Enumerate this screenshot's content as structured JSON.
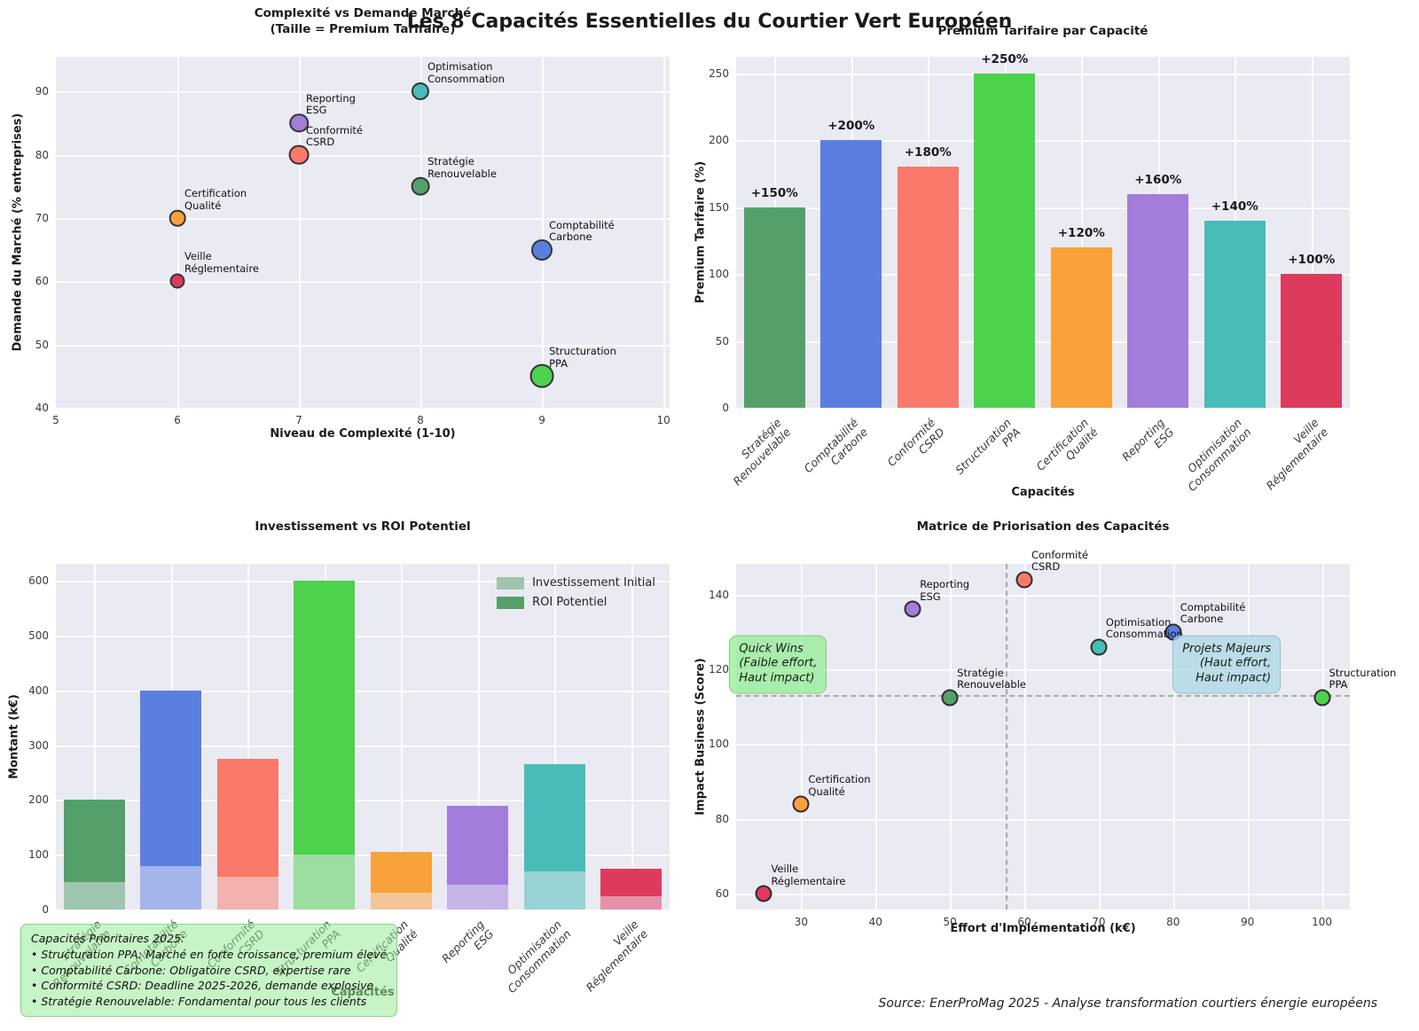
{
  "figure": {
    "suptitle": "Les 8 Capacités Essentielles du Courtier Vert Européen",
    "source": "Source: EnerProMag 2025 - Analyse transformation courtiers énergie européens",
    "background": "#ffffff",
    "plot_background": "#eaeaf2",
    "grid_color": "#ffffff"
  },
  "capacities": [
    {
      "name": "Stratégie Renouvelable",
      "color": "#55a06a",
      "complexite": 8,
      "demande_pct": 75,
      "premium_pct": 150,
      "invest_keur": 50,
      "roi_keur": 150,
      "effort_keur": 50,
      "impact_score": 112.5
    },
    {
      "name": "Comptabilité Carbone",
      "color": "#5b7fe0",
      "complexite": 9,
      "demande_pct": 65,
      "premium_pct": 200,
      "invest_keur": 80,
      "roi_keur": 320,
      "effort_keur": 80,
      "impact_score": 130
    },
    {
      "name": "Conformité CSRD",
      "color": "#f9796a",
      "complexite": 7,
      "demande_pct": 80,
      "premium_pct": 180,
      "invest_keur": 60,
      "roi_keur": 215,
      "effort_keur": 60,
      "impact_score": 144
    },
    {
      "name": "Structuration PPA",
      "color": "#4cd24c",
      "complexite": 9,
      "demande_pct": 45,
      "premium_pct": 250,
      "invest_keur": 100,
      "roi_keur": 500,
      "effort_keur": 100,
      "impact_score": 112.5
    },
    {
      "name": "Certification Qualité",
      "color": "#f9a23b",
      "complexite": 6,
      "demande_pct": 70,
      "premium_pct": 120,
      "invest_keur": 30,
      "roi_keur": 75,
      "effort_keur": 30,
      "impact_score": 84
    },
    {
      "name": "Reporting ESG",
      "color": "#a27ddb",
      "complexite": 7,
      "demande_pct": 85,
      "premium_pct": 160,
      "invest_keur": 45,
      "roi_keur": 145,
      "effort_keur": 45,
      "impact_score": 136
    },
    {
      "name": "Optimisation Consommation",
      "color": "#48bcb8",
      "complexite": 8,
      "demande_pct": 90,
      "premium_pct": 140,
      "invest_keur": 70,
      "roi_keur": 195,
      "effort_keur": 70,
      "impact_score": 126
    },
    {
      "name": "Veille Réglementaire",
      "color": "#dd3a5e",
      "complexite": 6,
      "demande_pct": 60,
      "premium_pct": 100,
      "invest_keur": 25,
      "roi_keur": 50,
      "effort_keur": 25,
      "impact_score": 60
    }
  ],
  "chart_data": [
    {
      "id": "complexite_vs_demande",
      "type": "scatter",
      "title": "Complexité vs Demande Marché\n(Taille = Premium Tarifaire)",
      "xlabel": "Niveau de Complexité (1-10)",
      "ylabel": "Demande du Marché (% entreprises)",
      "xlim": [
        5,
        10.05
      ],
      "ylim": [
        40,
        95.5
      ],
      "xticks": [
        5,
        6,
        7,
        8,
        9,
        10
      ],
      "yticks": [
        40,
        50,
        60,
        70,
        80,
        90
      ],
      "grid": true,
      "size_encoding": "taille du point = premium tarifaire (%)",
      "points": [
        {
          "label": "Stratégie Renouvelable",
          "x": 8,
          "y": 75,
          "size": 150,
          "color": "#55a06a"
        },
        {
          "label": "Comptabilité Carbone",
          "x": 9,
          "y": 65,
          "size": 200,
          "color": "#5b7fe0"
        },
        {
          "label": "Conformité CSRD",
          "x": 7,
          "y": 80,
          "size": 180,
          "color": "#f9796a"
        },
        {
          "label": "Structuration PPA",
          "x": 9,
          "y": 45,
          "size": 250,
          "color": "#4cd24c"
        },
        {
          "label": "Certification Qualité",
          "x": 6,
          "y": 70,
          "size": 120,
          "color": "#f9a23b"
        },
        {
          "label": "Reporting ESG",
          "x": 7,
          "y": 85,
          "size": 160,
          "color": "#a27ddb"
        },
        {
          "label": "Optimisation Consommation",
          "x": 8,
          "y": 90,
          "size": 140,
          "color": "#48bcb8"
        },
        {
          "label": "Veille Réglementaire",
          "x": 6,
          "y": 60,
          "size": 100,
          "color": "#dd3a5e"
        }
      ]
    },
    {
      "id": "premium_tarifaire",
      "type": "bar",
      "title": "Premium Tarifaire par Capacité",
      "xlabel": "Capacités",
      "ylabel": "Premium Tarifaire (%)",
      "ylim": [
        0,
        262.5
      ],
      "yticks": [
        0,
        50,
        100,
        150,
        200,
        250
      ],
      "grid": true,
      "categories": [
        "Stratégie Renouvelable",
        "Comptabilité Carbone",
        "Conformité CSRD",
        "Structuration PPA",
        "Certification Qualité",
        "Reporting ESG",
        "Optimisation Consommation",
        "Veille Réglementaire"
      ],
      "values": [
        150,
        200,
        180,
        250,
        120,
        160,
        140,
        100
      ],
      "bar_labels": [
        "+150%",
        "+200%",
        "+180%",
        "+250%",
        "+120%",
        "+160%",
        "+140%",
        "+100%"
      ],
      "colors": [
        "#55a06a",
        "#5b7fe0",
        "#f9796a",
        "#4cd24c",
        "#f9a23b",
        "#a27ddb",
        "#48bcb8",
        "#dd3a5e"
      ]
    },
    {
      "id": "investissement_roi",
      "type": "bar",
      "stacked": true,
      "title": "Investissement vs ROI Potentiel",
      "xlabel": "Capacités",
      "ylabel": "Montant (k€)",
      "ylim": [
        0,
        631
      ],
      "yticks": [
        0,
        100,
        200,
        300,
        400,
        500,
        600
      ],
      "grid": true,
      "categories": [
        "Stratégie Renouvelable",
        "Comptabilité Carbone",
        "Conformité CSRD",
        "Structuration PPA",
        "Certification Qualité",
        "Reporting ESG",
        "Optimisation Consommation",
        "Veille Réglementaire"
      ],
      "series": [
        {
          "name": "Investissement Initial",
          "values": [
            50,
            80,
            60,
            100,
            30,
            45,
            70,
            25
          ]
        },
        {
          "name": "ROI Potentiel",
          "values": [
            150,
            320,
            215,
            500,
            75,
            145,
            195,
            50
          ]
        }
      ],
      "colors": [
        "#55a06a",
        "#5b7fe0",
        "#f9796a",
        "#4cd24c",
        "#f9a23b",
        "#a27ddb",
        "#48bcb8",
        "#dd3a5e"
      ],
      "legend": [
        "Investissement Initial",
        "ROI Potentiel"
      ],
      "legend_position": "upper right"
    },
    {
      "id": "matrice_priorisation",
      "type": "scatter",
      "title": "Matrice de Priorisation des Capacités",
      "xlabel": "Effort d'Implémentation (k€)",
      "ylabel": "Impact Business (Score)",
      "xlim": [
        21.25,
        103.75
      ],
      "ylim": [
        55.8,
        148.2
      ],
      "xticks": [
        30,
        40,
        50,
        60,
        70,
        80,
        90,
        100
      ],
      "yticks": [
        60,
        80,
        100,
        120,
        140
      ],
      "grid": true,
      "reference_lines": {
        "x": 57.5,
        "y": 113.1,
        "style": "dashed",
        "color": "#a9a9a9"
      },
      "points": [
        {
          "label": "Stratégie Renouvelable",
          "x": 50,
          "y": 112.5,
          "color": "#55a06a"
        },
        {
          "label": "Comptabilité Carbone",
          "x": 80,
          "y": 130,
          "color": "#5b7fe0"
        },
        {
          "label": "Conformité CSRD",
          "x": 60,
          "y": 144,
          "color": "#f9796a"
        },
        {
          "label": "Structuration PPA",
          "x": 100,
          "y": 112.5,
          "color": "#4cd24c"
        },
        {
          "label": "Certification Qualité",
          "x": 30,
          "y": 84,
          "color": "#f9a23b"
        },
        {
          "label": "Reporting ESG",
          "x": 45,
          "y": 136,
          "color": "#a27ddb"
        },
        {
          "label": "Optimisation Consommation",
          "x": 70,
          "y": 126,
          "color": "#48bcb8"
        },
        {
          "label": "Veille Réglementaire",
          "x": 25,
          "y": 60,
          "color": "#dd3a5e"
        }
      ],
      "quadrant_boxes": [
        {
          "text": "Quick Wins\n(Faible effort,\nHaut impact)",
          "x": 26.9,
          "y": 121.3,
          "bg": "lightgreen"
        },
        {
          "text": "Projets Majeurs\n(Haut effort,\nHaut impact)",
          "x": 87.2,
          "y": 121.3,
          "bg": "lightblue"
        }
      ]
    }
  ],
  "annotations": {
    "priorities_note": "Capacités Prioritaires 2025:\n• Structuration PPA: Marché en forte croissance, premium élevé\n• Comptabilité Carbone: Obligatoire CSRD, expertise rare\n• Conformité CSRD: Deadline 2025-2026, demande explosive\n• Stratégie Renouvelable: Fondamental pour tous les clients"
  }
}
